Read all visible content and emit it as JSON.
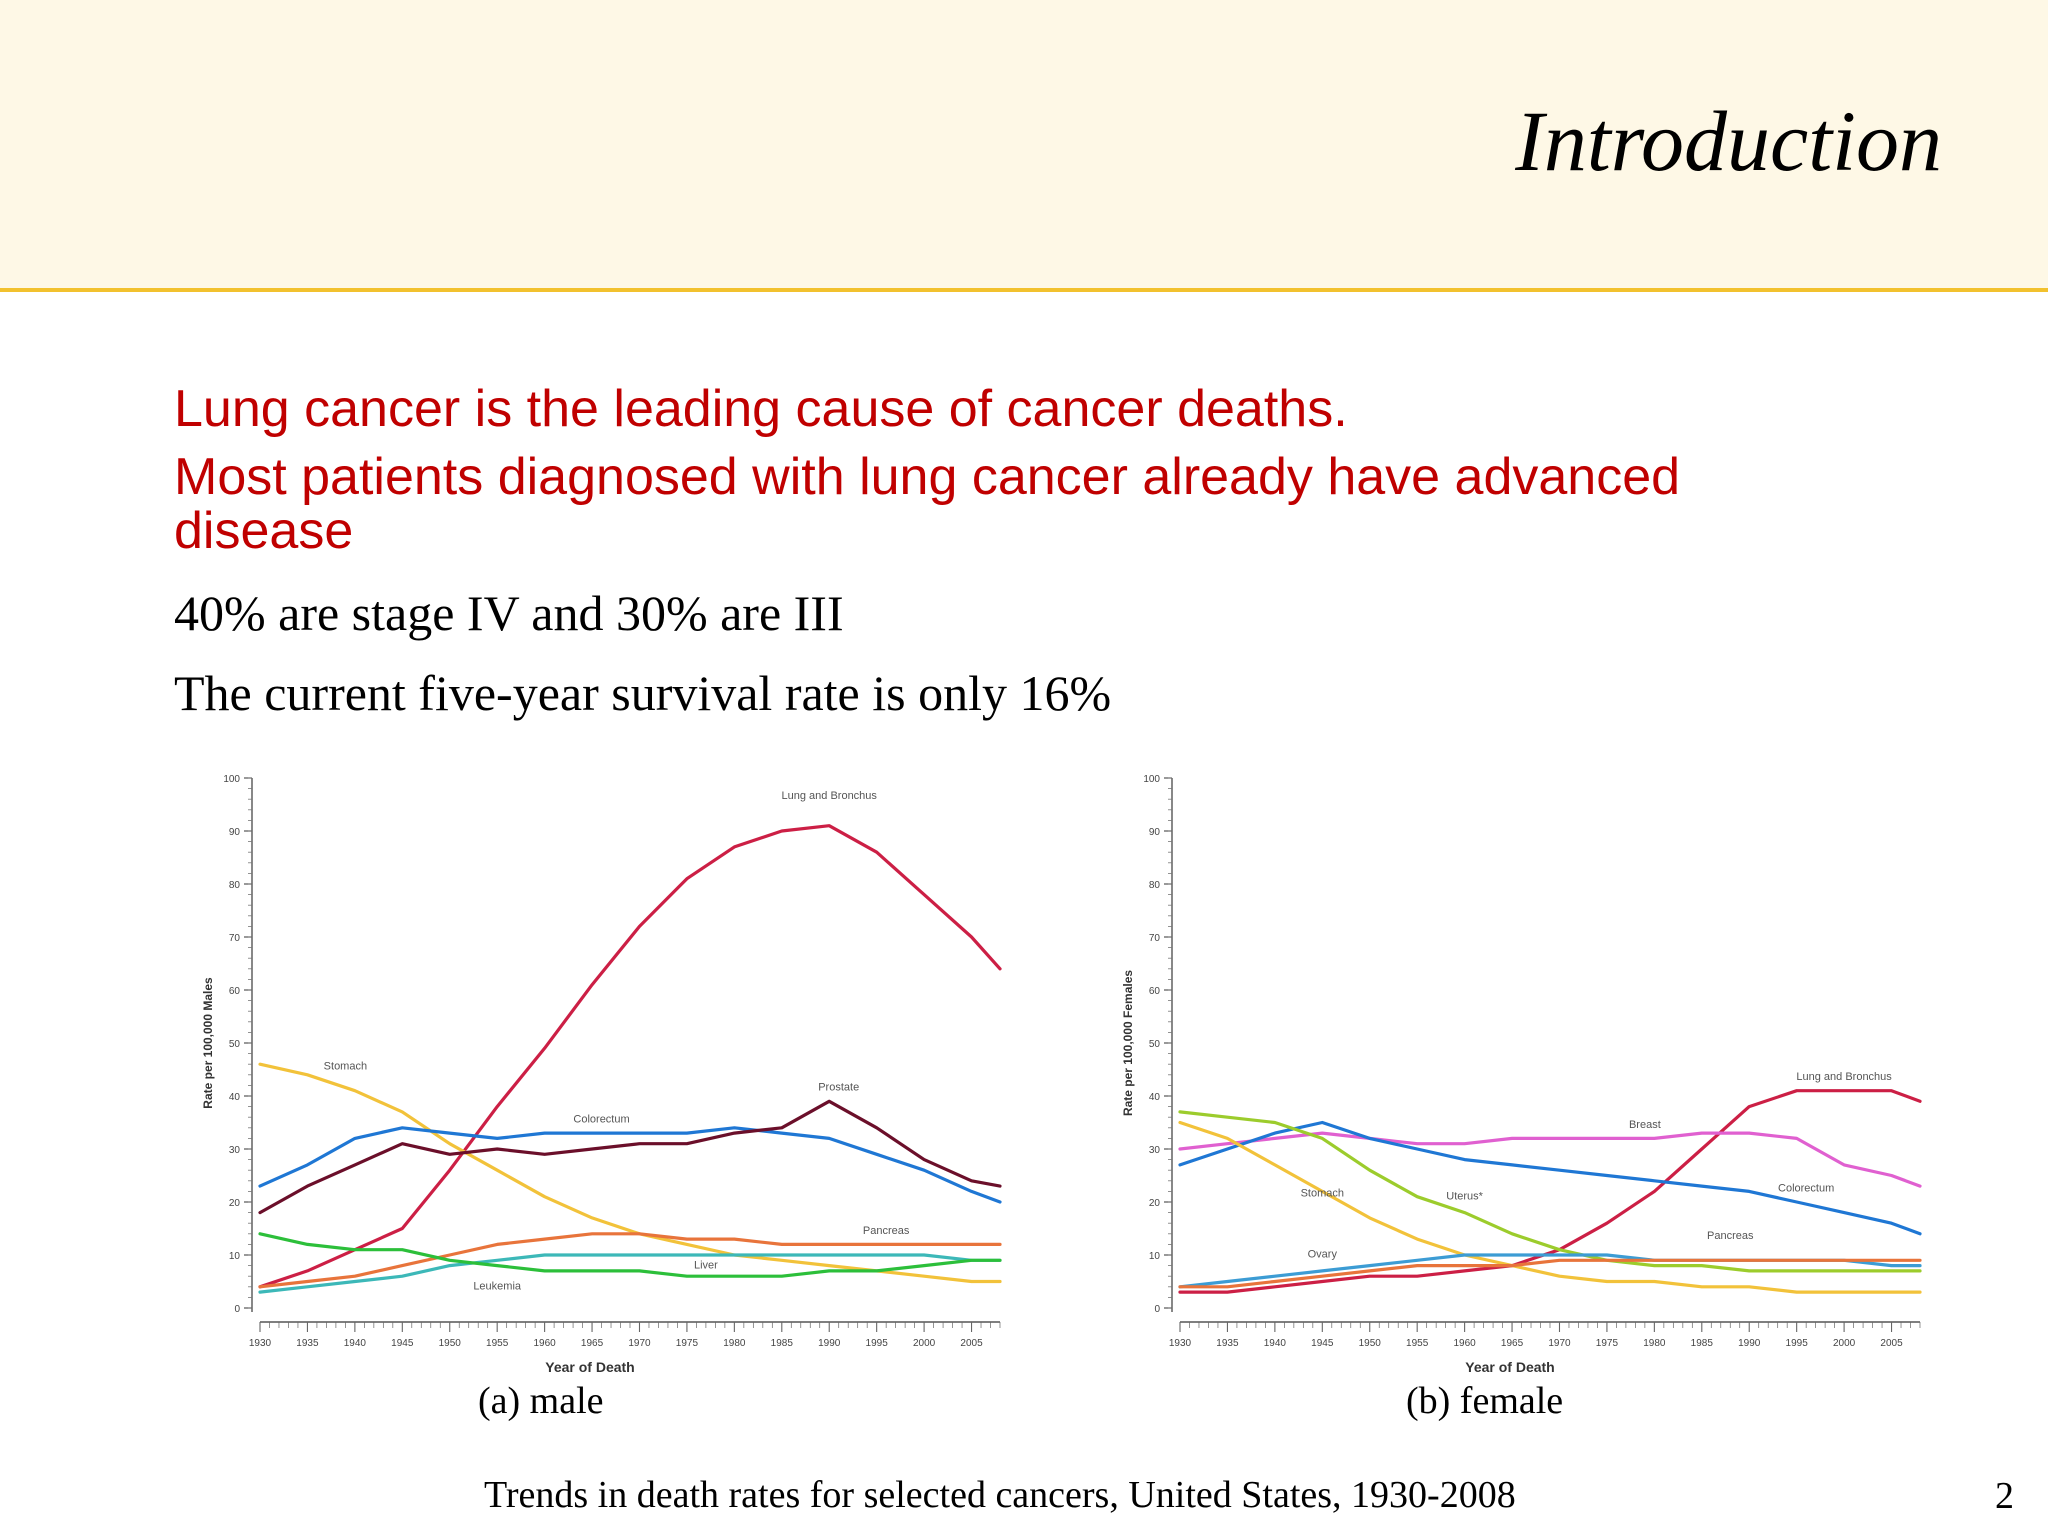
{
  "slide": {
    "title": "Introduction",
    "bullets_red": [
      "Lung cancer is the leading cause of cancer deaths.",
      "Most patients diagnosed with lung cancer already have advanced",
      "disease"
    ],
    "bullets_black": [
      "40% are stage IV and 30% are III",
      "The current five-year survival rate is only 16%"
    ],
    "caption_a": "(a) male",
    "caption_b": "(b) female",
    "figure_caption": "Trends in death rates for selected cancers, United States, 1930-2008",
    "page_number": "2"
  },
  "chart_data": [
    {
      "type": "line",
      "xlabel": "Year of Death",
      "ylabel": "Rate per 100,000 Males",
      "xlim": [
        1930,
        2008
      ],
      "ylim": [
        0,
        100
      ],
      "yticks": [
        0,
        10,
        20,
        30,
        40,
        50,
        60,
        70,
        80,
        90,
        100
      ],
      "xticks": [
        1930,
        1935,
        1940,
        1945,
        1950,
        1955,
        1960,
        1965,
        1970,
        1975,
        1980,
        1985,
        1990,
        1995,
        2000,
        2005
      ],
      "series": [
        {
          "name": "Lung and Bronchus",
          "color": "#cc1f45",
          "x": [
            1930,
            1935,
            1940,
            1945,
            1950,
            1955,
            1960,
            1965,
            1970,
            1975,
            1980,
            1985,
            1990,
            1995,
            2000,
            2005,
            2008
          ],
          "y": [
            4,
            7,
            11,
            15,
            26,
            38,
            49,
            61,
            72,
            81,
            87,
            90,
            91,
            86,
            78,
            70,
            64
          ]
        },
        {
          "name": "Stomach",
          "color": "#f2c23a",
          "x": [
            1930,
            1935,
            1940,
            1945,
            1950,
            1955,
            1960,
            1965,
            1970,
            1975,
            1980,
            1985,
            1990,
            1995,
            2000,
            2005,
            2008
          ],
          "y": [
            46,
            44,
            41,
            37,
            31,
            26,
            21,
            17,
            14,
            12,
            10,
            9,
            8,
            7,
            6,
            5,
            5
          ]
        },
        {
          "name": "Colorectum",
          "color": "#1f77d4",
          "x": [
            1930,
            1935,
            1940,
            1945,
            1950,
            1955,
            1960,
            1965,
            1970,
            1975,
            1980,
            1985,
            1990,
            1995,
            2000,
            2005,
            2008
          ],
          "y": [
            23,
            27,
            32,
            34,
            33,
            32,
            33,
            33,
            33,
            33,
            34,
            33,
            32,
            29,
            26,
            22,
            20
          ]
        },
        {
          "name": "Prostate",
          "color": "#6b0f2a",
          "x": [
            1930,
            1935,
            1940,
            1945,
            1950,
            1955,
            1960,
            1965,
            1970,
            1975,
            1980,
            1985,
            1990,
            1995,
            2000,
            2005,
            2008
          ],
          "y": [
            18,
            23,
            27,
            31,
            29,
            30,
            29,
            30,
            31,
            31,
            33,
            34,
            39,
            34,
            28,
            24,
            23
          ]
        },
        {
          "name": "Pancreas",
          "color": "#e8743b",
          "x": [
            1930,
            1935,
            1940,
            1945,
            1950,
            1955,
            1960,
            1965,
            1970,
            1975,
            1980,
            1985,
            1990,
            1995,
            2000,
            2005,
            2008
          ],
          "y": [
            4,
            5,
            6,
            8,
            10,
            12,
            13,
            14,
            14,
            13,
            13,
            12,
            12,
            12,
            12,
            12,
            12
          ]
        },
        {
          "name": "Liver",
          "color": "#3cb8b8",
          "x": [
            1930,
            1935,
            1940,
            1945,
            1950,
            1955,
            1960,
            1965,
            1970,
            1975,
            1980,
            1985,
            1990,
            1995,
            2000,
            2005,
            2008
          ],
          "y": [
            3,
            4,
            5,
            6,
            8,
            9,
            10,
            10,
            10,
            10,
            10,
            10,
            10,
            10,
            10,
            9,
            9
          ]
        },
        {
          "name": "Leukemia",
          "color": "#2cbf3a",
          "x": [
            1930,
            1935,
            1940,
            1945,
            1950,
            1955,
            1960,
            1965,
            1970,
            1975,
            1980,
            1985,
            1990,
            1995,
            2000,
            2005,
            2008
          ],
          "y": [
            14,
            12,
            11,
            11,
            9,
            8,
            7,
            7,
            7,
            6,
            6,
            6,
            7,
            7,
            8,
            9,
            9
          ]
        }
      ]
    },
    {
      "type": "line",
      "xlabel": "Year of Death",
      "ylabel": "Rate per 100,000 Females",
      "xlim": [
        1930,
        2008
      ],
      "ylim": [
        0,
        100
      ],
      "yticks": [
        0,
        10,
        20,
        30,
        40,
        50,
        60,
        70,
        80,
        90,
        100
      ],
      "xticks": [
        1930,
        1935,
        1940,
        1945,
        1950,
        1955,
        1960,
        1965,
        1970,
        1975,
        1980,
        1985,
        1990,
        1995,
        2000,
        2005
      ],
      "series": [
        {
          "name": "Lung and Bronchus",
          "color": "#cc1f45",
          "x": [
            1930,
            1935,
            1940,
            1945,
            1950,
            1955,
            1960,
            1965,
            1970,
            1975,
            1980,
            1985,
            1990,
            1995,
            2000,
            2005,
            2008
          ],
          "y": [
            3,
            3,
            4,
            5,
            6,
            6,
            7,
            8,
            11,
            16,
            22,
            30,
            38,
            41,
            41,
            41,
            39
          ]
        },
        {
          "name": "Breast",
          "color": "#e060d0",
          "x": [
            1930,
            1935,
            1940,
            1945,
            1950,
            1955,
            1960,
            1965,
            1970,
            1975,
            1980,
            1985,
            1990,
            1995,
            2000,
            2005,
            2008
          ],
          "y": [
            30,
            31,
            32,
            33,
            32,
            31,
            31,
            32,
            32,
            32,
            32,
            33,
            33,
            32,
            27,
            25,
            23
          ]
        },
        {
          "name": "Colorectum",
          "color": "#1f77d4",
          "x": [
            1930,
            1935,
            1940,
            1945,
            1950,
            1955,
            1960,
            1965,
            1970,
            1975,
            1980,
            1985,
            1990,
            1995,
            2000,
            2005,
            2008
          ],
          "y": [
            27,
            30,
            33,
            35,
            32,
            30,
            28,
            27,
            26,
            25,
            24,
            23,
            22,
            20,
            18,
            16,
            14
          ]
        },
        {
          "name": "Uterus*",
          "color": "#9ccc2c",
          "x": [
            1930,
            1935,
            1940,
            1945,
            1950,
            1955,
            1960,
            1965,
            1970,
            1975,
            1980,
            1985,
            1990,
            1995,
            2000,
            2005,
            2008
          ],
          "y": [
            37,
            36,
            35,
            32,
            26,
            21,
            18,
            14,
            11,
            9,
            8,
            8,
            7,
            7,
            7,
            7,
            7
          ]
        },
        {
          "name": "Stomach",
          "color": "#f2c23a",
          "x": [
            1930,
            1935,
            1940,
            1945,
            1950,
            1955,
            1960,
            1965,
            1970,
            1975,
            1980,
            1985,
            1990,
            1995,
            2000,
            2005,
            2008
          ],
          "y": [
            35,
            32,
            27,
            22,
            17,
            13,
            10,
            8,
            6,
            5,
            5,
            4,
            4,
            3,
            3,
            3,
            3
          ]
        },
        {
          "name": "Ovary",
          "color": "#3c9cd4",
          "x": [
            1930,
            1935,
            1940,
            1945,
            1950,
            1955,
            1960,
            1965,
            1970,
            1975,
            1980,
            1985,
            1990,
            1995,
            2000,
            2005,
            2008
          ],
          "y": [
            4,
            5,
            6,
            7,
            8,
            9,
            10,
            10,
            10,
            10,
            9,
            9,
            9,
            9,
            9,
            8,
            8
          ]
        },
        {
          "name": "Pancreas",
          "color": "#e8743b",
          "x": [
            1930,
            1935,
            1940,
            1945,
            1950,
            1955,
            1960,
            1965,
            1970,
            1975,
            1980,
            1985,
            1990,
            1995,
            2000,
            2005,
            2008
          ],
          "y": [
            4,
            4,
            5,
            6,
            7,
            8,
            8,
            8,
            9,
            9,
            9,
            9,
            9,
            9,
            9,
            9,
            9
          ]
        }
      ],
      "labelled_series": [
        "Lung and Bronchus",
        "Breast",
        "Colorectum",
        "Uterus*",
        "Stomach",
        "Ovary",
        "Pancreas"
      ]
    }
  ]
}
